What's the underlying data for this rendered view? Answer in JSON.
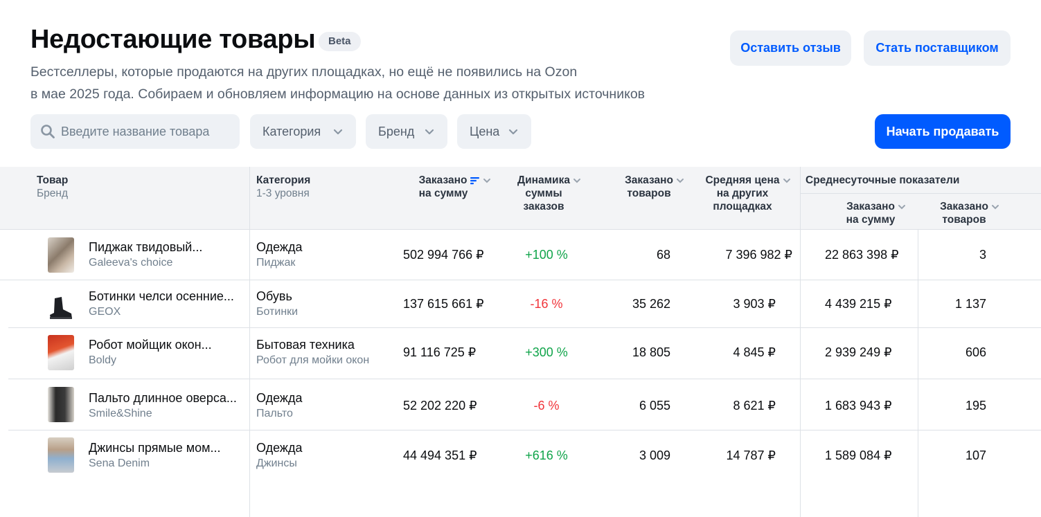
{
  "header": {
    "title": "Недостающие товары",
    "badge": "Beta",
    "subtitle_line1": "Бестселлеры, которые продаются на других площадках, но ещё не появились на Ozon",
    "subtitle_line2": "в мае 2025 года. Собираем и обновляем информацию на основе данных из открытых источников",
    "feedback_button": "Оставить отзыв",
    "supplier_button": "Стать поставщиком"
  },
  "filters": {
    "search_placeholder": "Введите название товара",
    "category": "Категория",
    "brand": "Бренд",
    "price": "Цена",
    "start_selling": "Начать продавать"
  },
  "table": {
    "headers": {
      "product": "Товар",
      "product_sub": "Бренд",
      "category": "Категория",
      "category_sub": "1-3 уровня",
      "ordered_sum_1": "Заказано",
      "ordered_sum_2": "на сумму",
      "dynamics_1": "Динамика",
      "dynamics_2": "суммы",
      "dynamics_3": "заказов",
      "ordered_items_1": "Заказано",
      "ordered_items_2": "товаров",
      "avg_price_1": "Средняя цена",
      "avg_price_2": "на других",
      "avg_price_3": "площадках",
      "daily_group": "Среднесуточные показатели",
      "daily_sum_1": "Заказано",
      "daily_sum_2": "на сумму",
      "daily_items_1": "Заказано",
      "daily_items_2": "товаров"
    },
    "rows": [
      {
        "name": "Пиджак твидовый...",
        "brand": "Galeeva's choice",
        "category": "Одежда",
        "subcategory": "Пиджак",
        "ordered_sum": "502 994 766 ₽",
        "dynamics": "+100 %",
        "trend": "up",
        "ordered_items": "68",
        "avg_price": "7 396 982 ₽",
        "daily_sum": "22 863 398 ₽",
        "daily_items": "3"
      },
      {
        "name": "Ботинки челси осенние...",
        "brand": "GEOX",
        "category": "Обувь",
        "subcategory": "Ботинки",
        "ordered_sum": "137 615 661 ₽",
        "dynamics": "-16 %",
        "trend": "down",
        "ordered_items": "35 262",
        "avg_price": "3 903 ₽",
        "daily_sum": "4 439 215 ₽",
        "daily_items": "1 137"
      },
      {
        "name": "Робот мойщик окон...",
        "brand": "Boldy",
        "category": "Бытовая техника",
        "subcategory": "Робот для мойки окон",
        "ordered_sum": "91 116 725 ₽",
        "dynamics": "+300 %",
        "trend": "up",
        "ordered_items": "18 805",
        "avg_price": "4 845 ₽",
        "daily_sum": "2 939 249 ₽",
        "daily_items": "606"
      },
      {
        "name": "Пальто длинное оверса...",
        "brand": "Smile&Shine",
        "category": "Одежда",
        "subcategory": "Пальто",
        "ordered_sum": "52 202 220 ₽",
        "dynamics": "-6 %",
        "trend": "down",
        "ordered_items": "6 055",
        "avg_price": "8 621 ₽",
        "daily_sum": "1 683 943 ₽",
        "daily_items": "195"
      },
      {
        "name": "Джинсы прямые мом...",
        "brand": "Sena Denim",
        "category": "Одежда",
        "subcategory": "Джинсы",
        "ordered_sum": "44 494 351 ₽",
        "dynamics": "+616 %",
        "trend": "up",
        "ordered_items": "3 009",
        "avg_price": "14 787 ₽",
        "daily_sum": "1 589 084 ₽",
        "daily_items": "107"
      }
    ]
  },
  "colors": {
    "accent": "#005bff",
    "positive": "#10a44a",
    "negative": "#f1343a"
  }
}
